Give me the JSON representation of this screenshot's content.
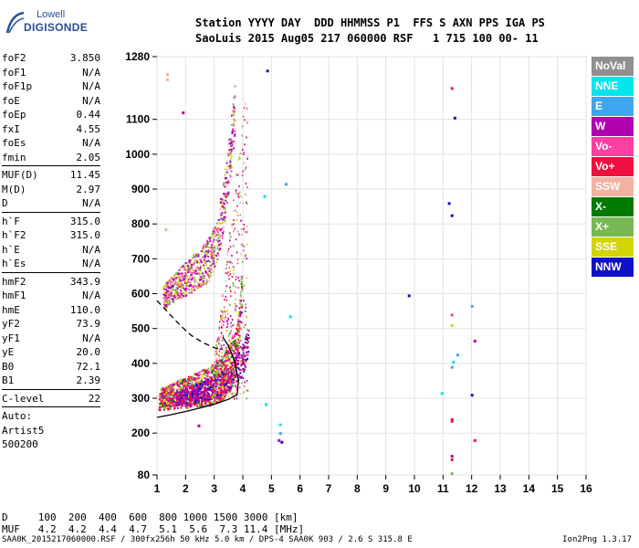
{
  "logo": {
    "line1": "Lowell",
    "line2": "DIGISONDE"
  },
  "header": {
    "row1": "Station YYYY DAY  DDD HHMMSS P1  FFS S AXN PPS IGA PS",
    "row2": "SaoLuis 2015 Aug05 217 060000 RSF   1 715 100 00- 11"
  },
  "params": [
    {
      "name": "foF2",
      "value": "3.850"
    },
    {
      "name": "foF1",
      "value": "N/A"
    },
    {
      "name": "foF1p",
      "value": "N/A"
    },
    {
      "name": "foE",
      "value": "N/A"
    },
    {
      "name": "foEp",
      "value": "0.44"
    },
    {
      "name": "fxI",
      "value": "4.55"
    },
    {
      "name": "foEs",
      "value": "N/A"
    },
    {
      "name": "fmin",
      "value": "2.05"
    },
    {
      "sep": true
    },
    {
      "name": "MUF(D)",
      "value": "11.45"
    },
    {
      "name": "M(D)",
      "value": "2.97"
    },
    {
      "name": "D",
      "value": "N/A"
    },
    {
      "sep": true
    },
    {
      "name": "h`F",
      "value": "315.0"
    },
    {
      "name": "h`F2",
      "value": "315.0"
    },
    {
      "name": "h`E",
      "value": "N/A"
    },
    {
      "name": "h`Es",
      "value": "N/A"
    },
    {
      "sep": true
    },
    {
      "name": "hmF2",
      "value": "343.9"
    },
    {
      "name": "hmF1",
      "value": "N/A"
    },
    {
      "name": "hmE",
      "value": "110.0"
    },
    {
      "name": "yF2",
      "value": "73.9"
    },
    {
      "name": "yF1",
      "value": "N/A"
    },
    {
      "name": "yE",
      "value": "20.0"
    },
    {
      "name": "B0",
      "value": "72.1"
    },
    {
      "name": "B1",
      "value": "2.39"
    },
    {
      "sep": true
    },
    {
      "name": "C-level",
      "value": "22"
    },
    {
      "sep": true
    },
    {
      "free": "Auto:"
    },
    {
      "free": "Artist5"
    },
    {
      "free": "500200"
    }
  ],
  "dmuf": {
    "d_row": "D     100  200  400  600  800 1000 1500 3000 [km]",
    "muf_row": "MUF   4.2  4.2  4.4  4.7  5.1  5.6  7.3 11.4 [MHz]"
  },
  "footer": {
    "left": "SAA0K_2015217060000.RSF / 300fx256h 50 kHz 5.0 km / DPS-4 SAA0K 903 / 2.6 S 315.8 E",
    "right": "Ion2Png 1.3.17"
  },
  "legend": [
    {
      "label": "NoVal",
      "color": "#909090"
    },
    {
      "label": "NNE",
      "color": "#00e5ee"
    },
    {
      "label": "E",
      "color": "#3ea6ee"
    },
    {
      "label": "W",
      "color": "#b000b0"
    },
    {
      "label": "Vo-",
      "color": "#ff40a0"
    },
    {
      "label": "Vo+",
      "color": "#f01040"
    },
    {
      "label": "SSW",
      "color": "#f4b0a0"
    },
    {
      "label": "X-",
      "color": "#007a00"
    },
    {
      "label": "X+",
      "color": "#77b855"
    },
    {
      "label": "SSE",
      "color": "#d4d400"
    },
    {
      "label": "NNW",
      "color": "#1010c8"
    }
  ],
  "chart_data": {
    "type": "scatter",
    "xlim": [
      1,
      16
    ],
    "ylim": [
      80,
      1280
    ],
    "x_ticks": [
      1,
      2,
      3,
      4,
      5,
      6,
      7,
      8,
      9,
      10,
      11,
      12,
      13,
      14,
      15,
      16
    ],
    "y_ticks": [
      80,
      200,
      300,
      400,
      500,
      600,
      700,
      800,
      900,
      1000,
      1100,
      1280
    ],
    "grid": true,
    "legend_position": "right",
    "o_trace_lower": [
      [
        1.05,
        298
      ],
      [
        1.5,
        308
      ],
      [
        2.0,
        318
      ],
      [
        2.5,
        328
      ],
      [
        3.0,
        343
      ],
      [
        3.3,
        360
      ],
      [
        3.5,
        385
      ],
      [
        3.7,
        420
      ],
      [
        3.8,
        460
      ],
      [
        3.85,
        500
      ],
      [
        3.9,
        560
      ],
      [
        3.95,
        620
      ]
    ],
    "o_trace_upper": [
      [
        1.2,
        590
      ],
      [
        1.6,
        620
      ],
      [
        2.0,
        645
      ],
      [
        2.4,
        670
      ],
      [
        2.8,
        700
      ],
      [
        3.1,
        760
      ],
      [
        3.3,
        850
      ],
      [
        3.45,
        950
      ],
      [
        3.6,
        1050
      ],
      [
        3.7,
        1130
      ]
    ],
    "x_trace": [
      [
        1.6,
        300
      ],
      [
        2.0,
        305
      ],
      [
        2.5,
        320
      ],
      [
        3.0,
        335
      ],
      [
        3.5,
        360
      ],
      [
        3.9,
        400
      ],
      [
        4.1,
        440
      ],
      [
        4.2,
        480
      ]
    ],
    "profile_curve": [
      [
        1,
        245
      ],
      [
        1.5,
        253
      ],
      [
        2.0,
        262
      ],
      [
        2.5,
        272
      ],
      [
        3.0,
        283
      ],
      [
        3.5,
        297
      ],
      [
        3.8,
        310
      ],
      [
        3.85,
        350
      ],
      [
        3.7,
        410
      ],
      [
        3.5,
        450
      ],
      [
        3.3,
        475
      ]
    ],
    "dashed_curve": [
      [
        1,
        580
      ],
      [
        1.4,
        545
      ],
      [
        1.8,
        510
      ],
      [
        2.2,
        480
      ],
      [
        2.6,
        460
      ],
      [
        3.0,
        445
      ],
      [
        3.3,
        440
      ]
    ],
    "isolated_points": [
      {
        "x": 4.85,
        "y": 1240,
        "c": "#1010c8"
      },
      {
        "x": 4.75,
        "y": 880,
        "c": "#00e5ee"
      },
      {
        "x": 5.5,
        "y": 915,
        "c": "#3ea6ee"
      },
      {
        "x": 5.65,
        "y": 535,
        "c": "#00e5ee"
      },
      {
        "x": 4.8,
        "y": 283,
        "c": "#00e5ee"
      },
      {
        "x": 2.45,
        "y": 222,
        "c": "#b000b0"
      },
      {
        "x": 5.3,
        "y": 225,
        "c": "#00e5ee"
      },
      {
        "x": 5.3,
        "y": 200,
        "c": "#3ea6ee"
      },
      {
        "x": 5.25,
        "y": 180,
        "c": "#b000b0"
      },
      {
        "x": 5.35,
        "y": 175,
        "c": "#1010c8"
      },
      {
        "x": 9.8,
        "y": 595,
        "c": "#1010c8"
      },
      {
        "x": 11.3,
        "y": 1190,
        "c": "#f01040"
      },
      {
        "x": 11.4,
        "y": 1105,
        "c": "#1010c8"
      },
      {
        "x": 11.2,
        "y": 860,
        "c": "#1010c8"
      },
      {
        "x": 11.3,
        "y": 825,
        "c": "#1010c8"
      },
      {
        "x": 11.3,
        "y": 540,
        "c": "#ff40a0"
      },
      {
        "x": 11.3,
        "y": 510,
        "c": "#d4d400"
      },
      {
        "x": 11.5,
        "y": 425,
        "c": "#3ea6ee"
      },
      {
        "x": 11.35,
        "y": 405,
        "c": "#00e5ee"
      },
      {
        "x": 11.3,
        "y": 390,
        "c": "#3ea6ee"
      },
      {
        "x": 10.95,
        "y": 315,
        "c": "#00e5ee"
      },
      {
        "x": 12.0,
        "y": 565,
        "c": "#3ea6ee"
      },
      {
        "x": 12.1,
        "y": 465,
        "c": "#b000b0"
      },
      {
        "x": 12.0,
        "y": 310,
        "c": "#1010c8"
      },
      {
        "x": 11.3,
        "y": 240,
        "c": "#f01040"
      },
      {
        "x": 11.3,
        "y": 235,
        "c": "#f01040"
      },
      {
        "x": 12.1,
        "y": 180,
        "c": "#f01040"
      },
      {
        "x": 11.3,
        "y": 135,
        "c": "#b000b0"
      },
      {
        "x": 11.3,
        "y": 125,
        "c": "#f01040"
      },
      {
        "x": 11.3,
        "y": 85,
        "c": "#77b855"
      },
      {
        "x": 1.35,
        "y": 1230,
        "c": "#f4b0a0"
      },
      {
        "x": 1.35,
        "y": 1215,
        "c": "#f4b0a0"
      },
      {
        "x": 1.3,
        "y": 785,
        "c": "#f4b0a0"
      },
      {
        "x": 1.9,
        "y": 1120,
        "c": "#b000b0"
      },
      {
        "x": 1.5,
        "y": 630,
        "c": "#f4b0a0"
      }
    ]
  }
}
